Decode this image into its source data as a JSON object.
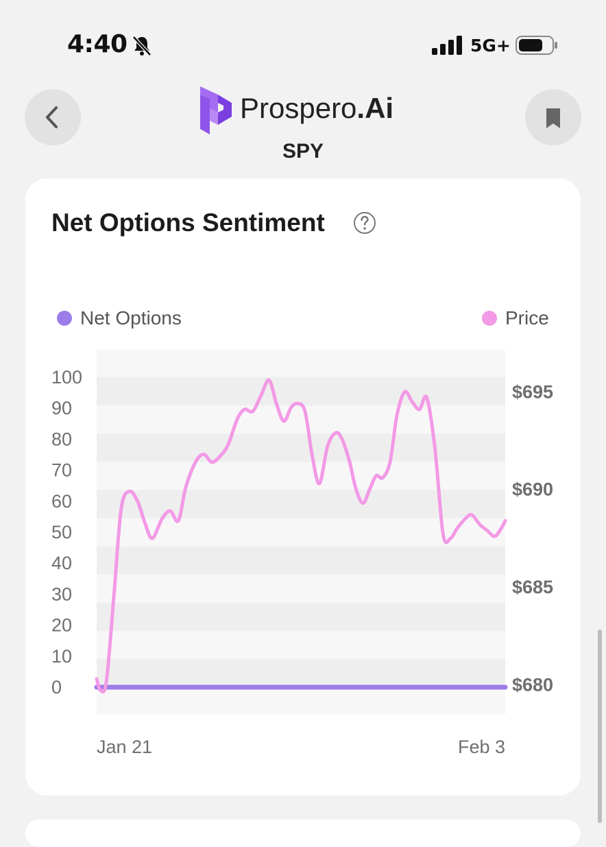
{
  "status_bar": {
    "time": "4:40",
    "network": "5G+"
  },
  "header": {
    "brand_name": "Prospero",
    "brand_suffix": ".Ai",
    "ticker": "SPY"
  },
  "card": {
    "title": "Net Options Sentiment",
    "legend": [
      {
        "label": "Net Options",
        "color": "#9b7ce8"
      },
      {
        "label": "Price",
        "color": "#f29ae6"
      }
    ]
  },
  "chart_data": {
    "type": "line",
    "x_labels": [
      "Jan 21",
      "Feb 3"
    ],
    "left_axis": {
      "ticks": [
        "0",
        "10",
        "20",
        "30",
        "40",
        "50",
        "60",
        "70",
        "80",
        "90",
        "100"
      ],
      "ylim": [
        0,
        100
      ]
    },
    "right_axis": {
      "ticks": [
        "$680",
        "$685",
        "$690",
        "$695"
      ],
      "values": [
        680,
        685,
        690,
        695
      ],
      "ylim": [
        679.7,
        696.1
      ]
    },
    "series": [
      {
        "name": "Net Options",
        "axis": "left",
        "color": "#9b7ce8",
        "x": [
          0,
          1
        ],
        "y": [
          0,
          0
        ]
      },
      {
        "name": "Price",
        "axis": "right",
        "color": "#f29ae6",
        "x": [
          0.0,
          0.01,
          0.024,
          0.042,
          0.06,
          0.08,
          0.1,
          0.118,
          0.136,
          0.16,
          0.18,
          0.2,
          0.218,
          0.242,
          0.262,
          0.282,
          0.302,
          0.322,
          0.344,
          0.362,
          0.382,
          0.402,
          0.422,
          0.44,
          0.458,
          0.476,
          0.492,
          0.51,
          0.527,
          0.545,
          0.565,
          0.585,
          0.6,
          0.618,
          0.635,
          0.652,
          0.668,
          0.684,
          0.7,
          0.718,
          0.735,
          0.754,
          0.772,
          0.79,
          0.808,
          0.828,
          0.848,
          0.866,
          0.882,
          0.902,
          0.918,
          0.938,
          0.956,
          0.974,
          0.99,
          1.0
        ],
        "y": [
          680.3,
          679.7,
          680.2,
          684.5,
          689.0,
          689.9,
          689.4,
          688.3,
          687.5,
          688.5,
          688.9,
          688.4,
          690.1,
          691.4,
          691.8,
          691.4,
          691.7,
          692.3,
          693.6,
          694.1,
          694.0,
          694.8,
          695.6,
          694.4,
          693.5,
          694.2,
          694.4,
          694.0,
          691.8,
          690.3,
          692.2,
          692.9,
          692.6,
          691.5,
          690.0,
          689.3,
          690.0,
          690.7,
          690.6,
          691.4,
          693.8,
          695.0,
          694.5,
          694.1,
          694.7,
          692.1,
          687.7,
          687.5,
          688.0,
          688.5,
          688.7,
          688.2,
          687.9,
          687.6,
          688.0,
          688.4
        ]
      }
    ],
    "grid": "alternating horizontal bands"
  }
}
